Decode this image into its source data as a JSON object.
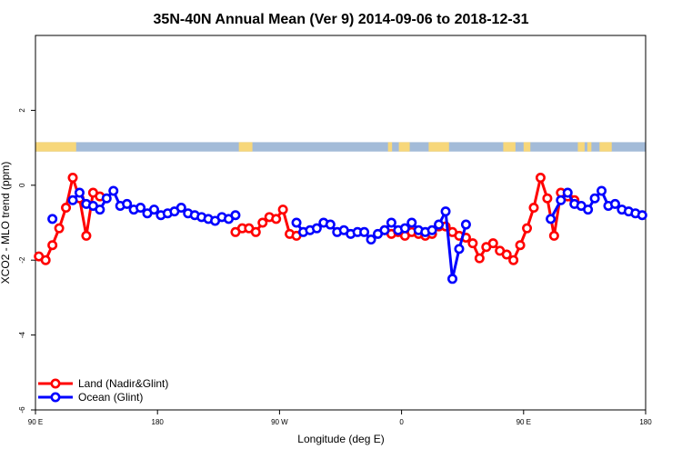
{
  "chart_data": {
    "type": "line",
    "title": "35N-40N Annual Mean (Ver 9)   2014-09-06 to 2018-12-31",
    "xlabel": "Longitude (deg E)",
    "ylabel": "XCO2 - MLO trend (ppm)",
    "xlim": [
      90,
      540
    ],
    "ylim": [
      -6,
      4
    ],
    "x_ticks": [
      {
        "value": 90,
        "label": "90 E"
      },
      {
        "value": 180,
        "label": "180"
      },
      {
        "value": 270,
        "label": "90 W"
      },
      {
        "value": 360,
        "label": "0"
      },
      {
        "value": 450,
        "label": "90 E"
      },
      {
        "value": 540,
        "label": "180"
      }
    ],
    "y_ticks": [
      {
        "value": -6,
        "label": "-6"
      },
      {
        "value": -4,
        "label": "-4"
      },
      {
        "value": -2,
        "label": "-2"
      },
      {
        "value": 0,
        "label": "0"
      },
      {
        "value": 2,
        "label": "2"
      }
    ],
    "grid": false,
    "legend_position": "bottom-left",
    "land_sea_strip": {
      "y_range": [
        0.9,
        1.15
      ],
      "ocean_color": "#a3bbd8",
      "land_color": "#f7d77a",
      "land_segments": [
        [
          90,
          120
        ],
        [
          240,
          250
        ],
        [
          350,
          353
        ],
        [
          358,
          366
        ],
        [
          380,
          395
        ],
        [
          435,
          444
        ],
        [
          450,
          455
        ],
        [
          490,
          495
        ],
        [
          497,
          500
        ],
        [
          506,
          515
        ]
      ]
    },
    "series": [
      {
        "name": "Land (Nadir&Glint)",
        "color": "#ff0000",
        "x": [
          92.5,
          97.5,
          102.5,
          107.5,
          112.5,
          117.5,
          122.5,
          127.5,
          132.5,
          137.5,
          237.5,
          242.5,
          247.5,
          252.5,
          257.5,
          262.5,
          267.5,
          272.5,
          277.5,
          282.5,
          347.5,
          352.5,
          357.5,
          362.5,
          367.5,
          372.5,
          377.5,
          382.5,
          387.5,
          392.5,
          397.5,
          402.5,
          407.5,
          412.5,
          417.5,
          422.5,
          427.5,
          432.5,
          437.5,
          442.5,
          447.5,
          452.5,
          457.5,
          462.5,
          467.5,
          472.5,
          477.5,
          482.5,
          487.5
        ],
        "values": [
          -1.9,
          -2.0,
          -1.6,
          -1.15,
          -0.6,
          0.2,
          -0.35,
          -1.35,
          -0.2,
          -0.3,
          -1.25,
          -1.15,
          -1.15,
          -1.25,
          -1.0,
          -0.85,
          -0.9,
          -0.65,
          -1.3,
          -1.35,
          -1.2,
          -1.3,
          -1.25,
          -1.35,
          -1.25,
          -1.3,
          -1.35,
          -1.3,
          -1.1,
          -1.1,
          -1.25,
          -1.35,
          -1.4,
          -1.55,
          -1.95,
          -1.65,
          -1.55,
          -1.75,
          -1.85,
          -2.0,
          -1.6,
          -1.15,
          -0.6,
          0.2,
          -0.35,
          -1.35,
          -0.2,
          -0.3,
          -0.4
        ]
      },
      {
        "name": "Ocean (Glint)",
        "color": "#0000ff",
        "x": [
          102.5,
          117.5,
          122.5,
          127.5,
          132.5,
          137.5,
          142.5,
          147.5,
          152.5,
          157.5,
          162.5,
          167.5,
          172.5,
          177.5,
          182.5,
          187.5,
          192.5,
          197.5,
          202.5,
          207.5,
          212.5,
          217.5,
          222.5,
          227.5,
          232.5,
          237.5,
          282.5,
          287.5,
          292.5,
          297.5,
          302.5,
          307.5,
          312.5,
          317.5,
          322.5,
          327.5,
          332.5,
          337.5,
          342.5,
          347.5,
          352.5,
          357.5,
          362.5,
          367.5,
          372.5,
          377.5,
          382.5,
          387.5,
          392.5,
          397.5,
          402.5,
          407.5,
          470,
          477.5,
          482.5,
          487.5,
          492.5,
          497.5,
          502.5,
          507.5,
          512.5,
          517.5,
          522.5,
          527.5,
          532.5,
          537.5
        ],
        "values": [
          -0.9,
          -0.4,
          -0.2,
          -0.5,
          -0.55,
          -0.65,
          -0.35,
          -0.15,
          -0.55,
          -0.5,
          -0.65,
          -0.6,
          -0.75,
          -0.65,
          -0.8,
          -0.75,
          -0.7,
          -0.6,
          -0.75,
          -0.8,
          -0.85,
          -0.9,
          -0.95,
          -0.85,
          -0.9,
          -0.8,
          -1.0,
          -1.25,
          -1.2,
          -1.15,
          -1.0,
          -1.05,
          -1.25,
          -1.2,
          -1.3,
          -1.25,
          -1.25,
          -1.45,
          -1.3,
          -1.2,
          -1.0,
          -1.2,
          -1.15,
          -1.0,
          -1.2,
          -1.25,
          -1.2,
          -1.05,
          -0.7,
          -2.5,
          -1.7,
          -1.05,
          -0.9,
          -0.4,
          -0.2,
          -0.5,
          -0.55,
          -0.65,
          -0.35,
          -0.15,
          -0.55,
          -0.5,
          -0.65,
          -0.7,
          -0.75,
          -0.8
        ]
      }
    ]
  }
}
